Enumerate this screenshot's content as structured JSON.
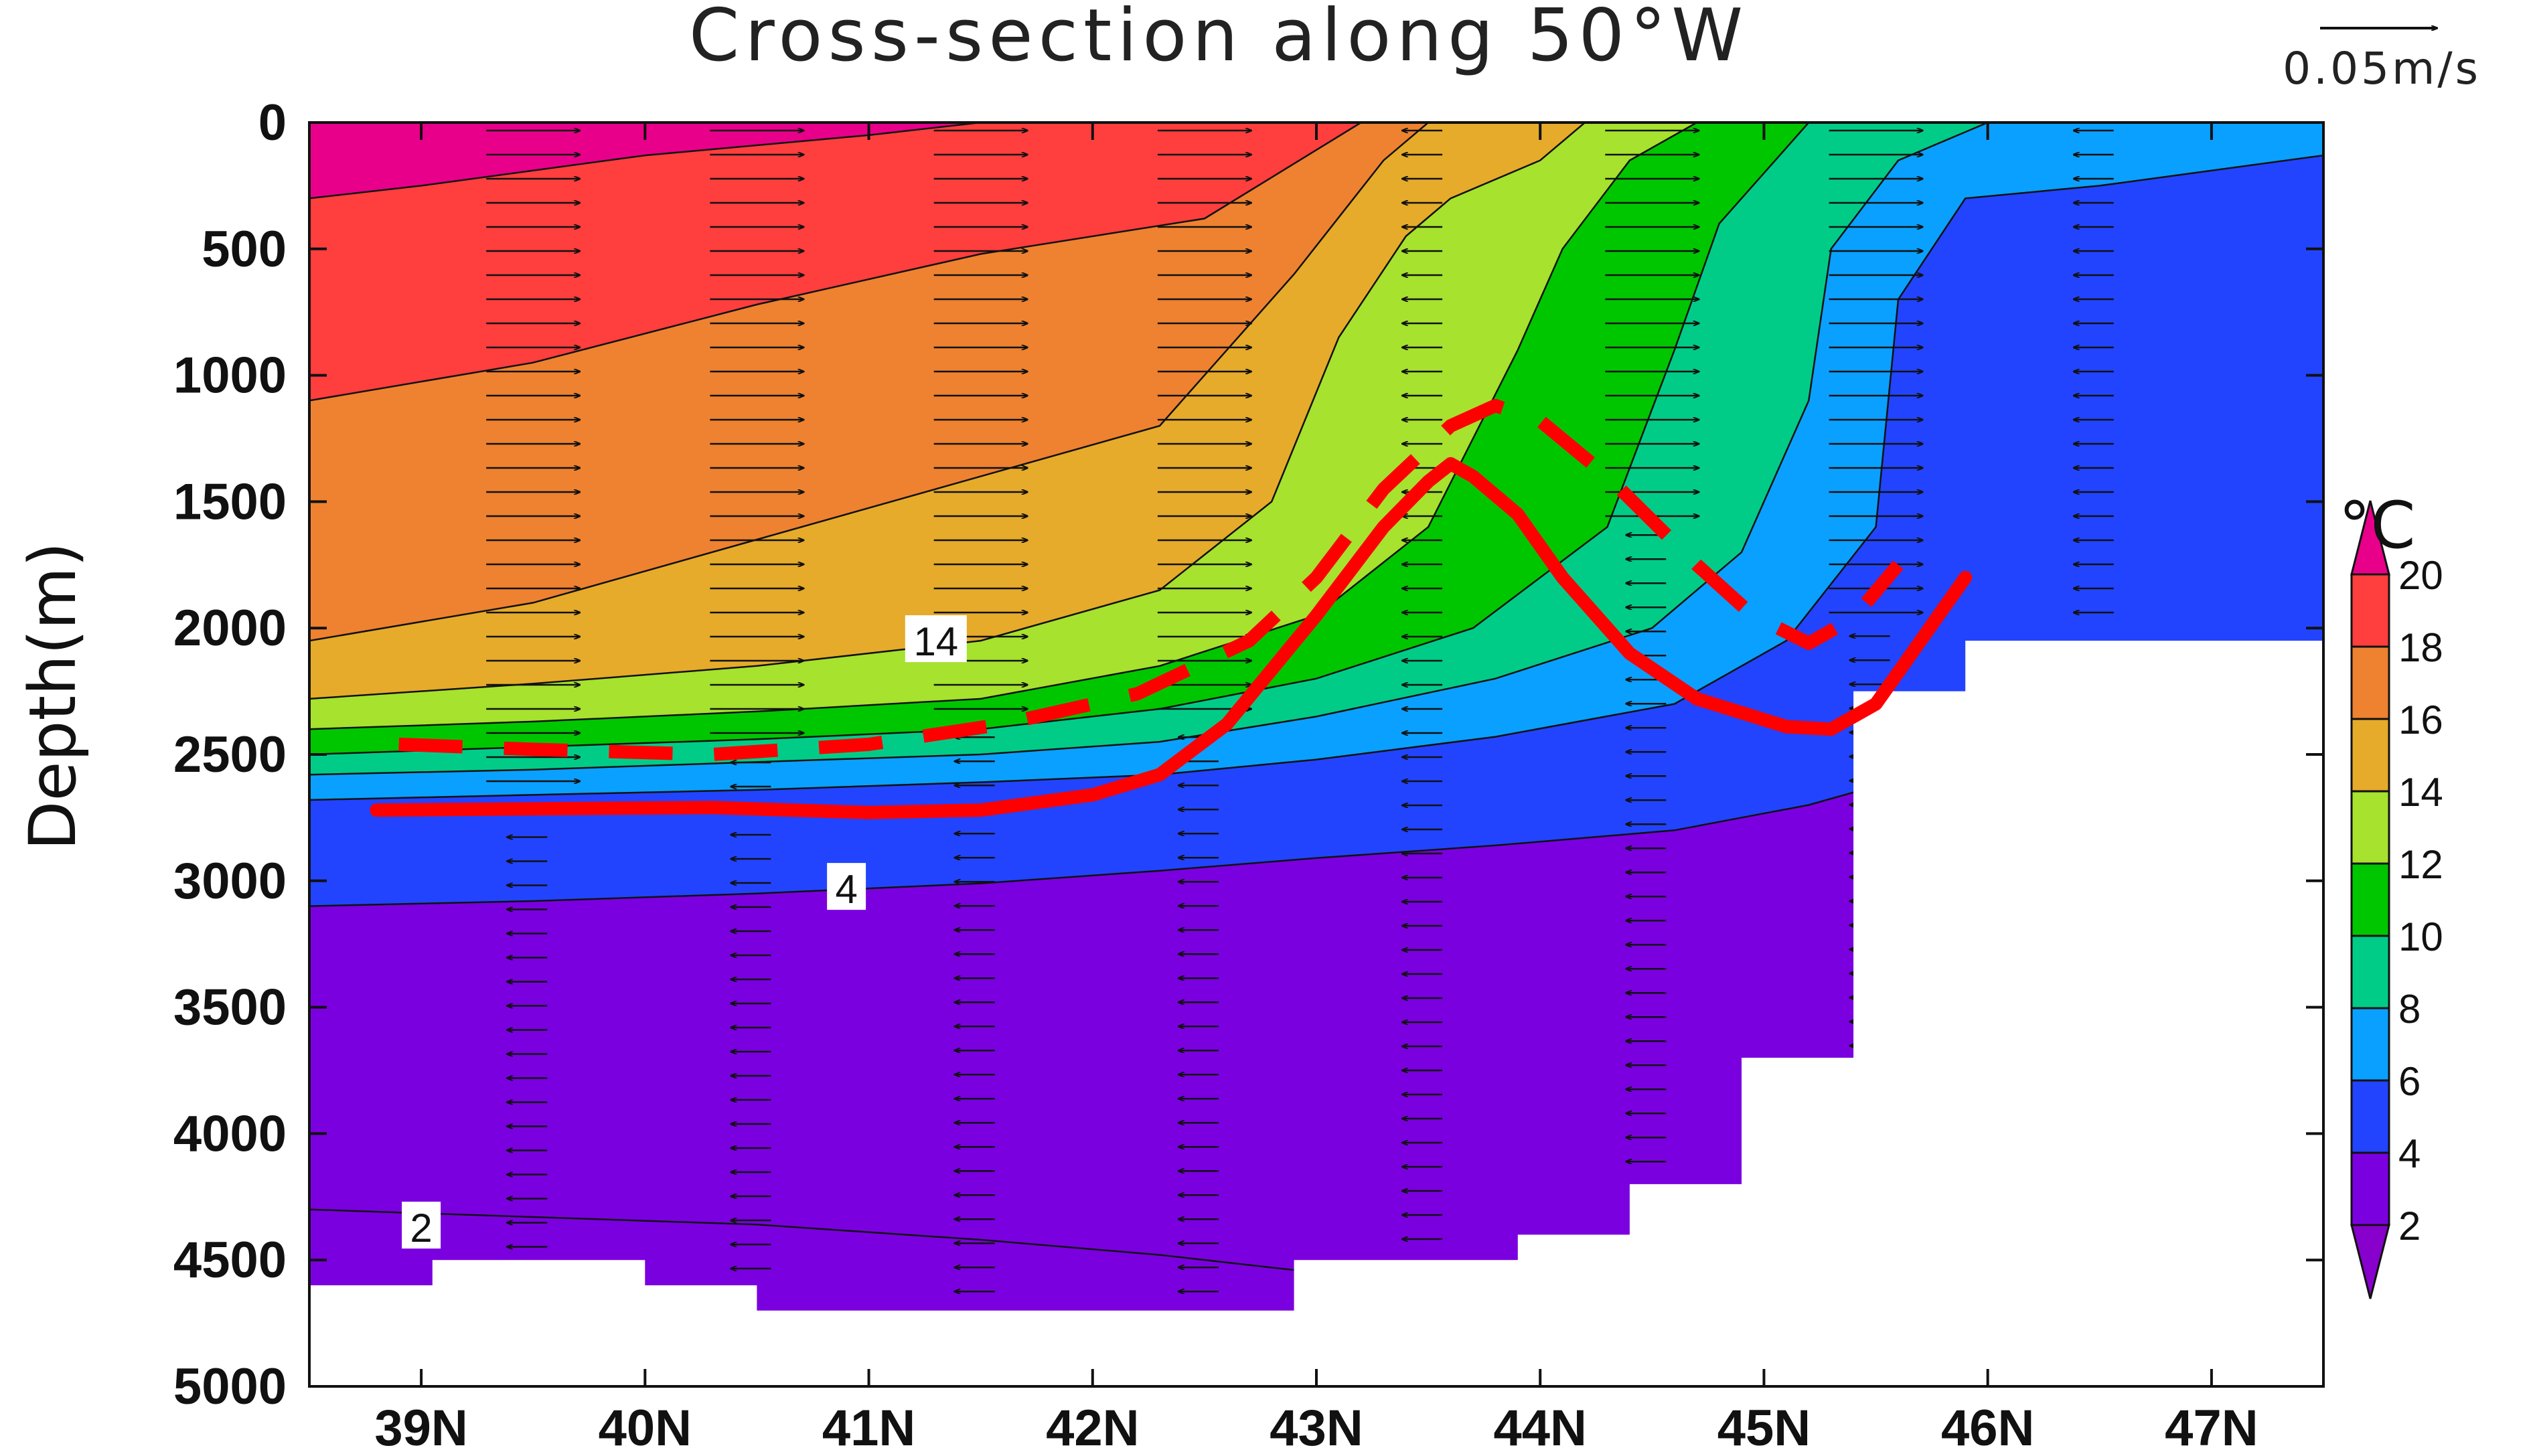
{
  "chart_data": {
    "type": "heatmap",
    "title": "Cross-section along 50°W",
    "xlabel": "",
    "ylabel": "Depth(m)",
    "x_ticks": [
      "39N",
      "40N",
      "41N",
      "42N",
      "43N",
      "44N",
      "45N",
      "46N",
      "47N"
    ],
    "x_tick_values": [
      39,
      40,
      41,
      42,
      43,
      44,
      45,
      46,
      47
    ],
    "xlim": [
      38.5,
      47.5
    ],
    "y_ticks": [
      "0",
      "500",
      "1000",
      "1500",
      "2000",
      "2500",
      "3000",
      "3500",
      "4000",
      "4500",
      "5000"
    ],
    "y_tick_values": [
      0,
      500,
      1000,
      1500,
      2000,
      2500,
      3000,
      3500,
      4000,
      4500,
      5000
    ],
    "ylim": [
      0,
      5000
    ],
    "y_inverted": true,
    "colorbar": {
      "unit": "°C",
      "levels": [
        2,
        4,
        6,
        8,
        10,
        12,
        14,
        16,
        18,
        20
      ],
      "labels": [
        "2",
        "4",
        "6",
        "8",
        "10",
        "12",
        "14",
        "16",
        "18",
        "20"
      ],
      "colors": [
        "#8800cc",
        "#7a00e0",
        "#2244ff",
        "#0aa0ff",
        "#00cc88",
        "#00c600",
        "#a6e22e",
        "#e6ab2a",
        "#ee8230",
        "#ff3e3e",
        "#e8008a"
      ]
    },
    "temperature_bands": [
      {
        "min": 18,
        "max": 20,
        "color": "#ff3e3e"
      },
      {
        "min": 16,
        "max": 18,
        "color": "#ee8230"
      },
      {
        "min": 14,
        "max": 16,
        "color": "#e6ab2a"
      },
      {
        "min": 12,
        "max": 14,
        "color": "#a6e22e"
      },
      {
        "min": 10,
        "max": 12,
        "color": "#00c600"
      },
      {
        "min": 8,
        "max": 10,
        "color": "#00cc88"
      },
      {
        "min": 6,
        "max": 8,
        "color": "#0aa0ff"
      },
      {
        "min": 4,
        "max": 6,
        "color": "#2244ff"
      },
      {
        "min": 2,
        "max": 4,
        "color": "#7a00e0"
      }
    ],
    "isotherm_depths_m": [
      {
        "t": 20,
        "points": [
          [
            38.5,
            300
          ],
          [
            39.0,
            250
          ],
          [
            40.0,
            130
          ],
          [
            41.0,
            50
          ],
          [
            41.5,
            0
          ]
        ]
      },
      {
        "t": 18,
        "points": [
          [
            38.5,
            1100
          ],
          [
            39.5,
            950
          ],
          [
            40.5,
            720
          ],
          [
            41.5,
            520
          ],
          [
            42.5,
            380
          ],
          [
            43.2,
            0
          ]
        ]
      },
      {
        "t": 16,
        "points": [
          [
            38.5,
            2050
          ],
          [
            39.5,
            1900
          ],
          [
            40.5,
            1650
          ],
          [
            41.5,
            1400
          ],
          [
            42.3,
            1200
          ],
          [
            42.9,
            600
          ],
          [
            43.3,
            150
          ],
          [
            43.5,
            0
          ]
        ]
      },
      {
        "t": 14,
        "points": [
          [
            38.5,
            2280
          ],
          [
            39.5,
            2220
          ],
          [
            40.5,
            2150
          ],
          [
            41.5,
            2050
          ],
          [
            42.3,
            1850
          ],
          [
            42.8,
            1500
          ],
          [
            43.1,
            850
          ],
          [
            43.4,
            450
          ],
          [
            43.6,
            300
          ],
          [
            44.0,
            150
          ],
          [
            44.2,
            0
          ]
        ]
      },
      {
        "t": 12,
        "points": [
          [
            38.5,
            2400
          ],
          [
            39.5,
            2370
          ],
          [
            40.5,
            2330
          ],
          [
            41.5,
            2280
          ],
          [
            42.3,
            2150
          ],
          [
            43.0,
            1950
          ],
          [
            43.5,
            1600
          ],
          [
            43.9,
            900
          ],
          [
            44.1,
            500
          ],
          [
            44.4,
            150
          ],
          [
            44.7,
            0
          ]
        ]
      },
      {
        "t": 10,
        "points": [
          [
            38.5,
            2500
          ],
          [
            39.5,
            2470
          ],
          [
            40.5,
            2440
          ],
          [
            41.5,
            2400
          ],
          [
            42.3,
            2320
          ],
          [
            43.0,
            2200
          ],
          [
            43.7,
            2000
          ],
          [
            44.3,
            1600
          ],
          [
            44.6,
            900
          ],
          [
            44.8,
            400
          ],
          [
            45.1,
            100
          ],
          [
            45.2,
            0
          ]
        ]
      },
      {
        "t": 8,
        "points": [
          [
            38.5,
            2580
          ],
          [
            39.5,
            2560
          ],
          [
            40.5,
            2530
          ],
          [
            41.5,
            2500
          ],
          [
            42.3,
            2450
          ],
          [
            43.0,
            2350
          ],
          [
            43.8,
            2200
          ],
          [
            44.5,
            2000
          ],
          [
            44.9,
            1700
          ],
          [
            45.2,
            1100
          ],
          [
            45.3,
            500
          ],
          [
            45.6,
            150
          ],
          [
            46.0,
            0
          ]
        ]
      },
      {
        "t": 6,
        "points": [
          [
            38.5,
            2680
          ],
          [
            39.5,
            2660
          ],
          [
            40.5,
            2640
          ],
          [
            41.5,
            2610
          ],
          [
            42.3,
            2580
          ],
          [
            43.0,
            2520
          ],
          [
            43.8,
            2430
          ],
          [
            44.6,
            2300
          ],
          [
            45.1,
            2050
          ],
          [
            45.5,
            1600
          ],
          [
            45.6,
            700
          ],
          [
            45.9,
            300
          ],
          [
            46.5,
            250
          ],
          [
            47.5,
            130
          ]
        ]
      },
      {
        "t": 4,
        "points": [
          [
            38.5,
            3100
          ],
          [
            39.5,
            3080
          ],
          [
            40.5,
            3050
          ],
          [
            41.5,
            3010
          ],
          [
            42.3,
            2960
          ],
          [
            43.0,
            2910
          ],
          [
            43.8,
            2860
          ],
          [
            44.6,
            2800
          ],
          [
            45.2,
            2700
          ],
          [
            45.8,
            2550
          ],
          [
            45.9,
            2450
          ]
        ]
      },
      {
        "t": 2,
        "points": [
          [
            38.5,
            4300
          ],
          [
            39.5,
            4330
          ],
          [
            40.5,
            4360
          ],
          [
            41.5,
            4420
          ],
          [
            42.3,
            4480
          ],
          [
            42.9,
            4540
          ]
        ]
      }
    ],
    "isotherm_labels": [
      {
        "text": "14",
        "x": 41.3,
        "depth": 2050
      },
      {
        "text": "4",
        "x": 40.9,
        "depth": 3030
      },
      {
        "text": "2",
        "x": 39.0,
        "depth": 4370
      }
    ],
    "seafloor_m": [
      [
        38.5,
        4600
      ],
      [
        39.05,
        4600
      ],
      [
        39.05,
        4500
      ],
      [
        40.0,
        4500
      ],
      [
        40.0,
        4600
      ],
      [
        40.5,
        4600
      ],
      [
        40.5,
        4700
      ],
      [
        42.9,
        4700
      ],
      [
        42.9,
        4500
      ],
      [
        43.9,
        4500
      ],
      [
        43.9,
        4400
      ],
      [
        44.4,
        4400
      ],
      [
        44.4,
        4200
      ],
      [
        44.9,
        4200
      ],
      [
        44.9,
        3700
      ],
      [
        45.4,
        3700
      ],
      [
        45.4,
        2250
      ],
      [
        45.9,
        2250
      ],
      [
        45.9,
        2050
      ],
      [
        46.4,
        2050
      ],
      [
        47.5,
        2050
      ]
    ],
    "velocity_reference": {
      "label": "0.05m/s"
    },
    "velocity_columns": [
      {
        "x": 39.5,
        "dir": [
          [
            0,
            2700,
            1
          ],
          [
            2700,
            4500,
            -1
          ]
        ]
      },
      {
        "x": 40.5,
        "dir": [
          [
            0,
            2500,
            1
          ],
          [
            2500,
            4600,
            -1
          ]
        ]
      },
      {
        "x": 41.5,
        "dir": [
          [
            0,
            2400,
            1
          ],
          [
            2400,
            4700,
            -1
          ]
        ]
      },
      {
        "x": 42.5,
        "dir": [
          [
            0,
            2400,
            1
          ],
          [
            2400,
            4700,
            -1
          ]
        ]
      },
      {
        "x": 43.5,
        "dir": [
          [
            0,
            4500,
            -1
          ]
        ]
      },
      {
        "x": 44.5,
        "dir": [
          [
            0,
            1600,
            1
          ],
          [
            1600,
            4200,
            -1
          ]
        ]
      },
      {
        "x": 45.5,
        "dir": [
          [
            0,
            2000,
            1
          ],
          [
            2000,
            4200,
            -1
          ]
        ]
      },
      {
        "x": 46.5,
        "dir": [
          [
            0,
            2000,
            -1
          ]
        ]
      }
    ],
    "series": [
      {
        "style": "solid",
        "color": "#ff0000",
        "points": [
          [
            38.8,
            2720
          ],
          [
            39.5,
            2715
          ],
          [
            40.3,
            2710
          ],
          [
            41.0,
            2730
          ],
          [
            41.5,
            2720
          ],
          [
            42.0,
            2660
          ],
          [
            42.3,
            2580
          ],
          [
            42.6,
            2380
          ],
          [
            43.0,
            1950
          ],
          [
            43.3,
            1600
          ],
          [
            43.5,
            1420
          ],
          [
            43.6,
            1350
          ],
          [
            43.7,
            1400
          ],
          [
            43.9,
            1550
          ],
          [
            44.1,
            1800
          ],
          [
            44.4,
            2100
          ],
          [
            44.7,
            2280
          ],
          [
            45.1,
            2390
          ],
          [
            45.3,
            2400
          ],
          [
            45.5,
            2300
          ],
          [
            45.7,
            2050
          ],
          [
            45.9,
            1800
          ]
        ]
      },
      {
        "style": "dashed",
        "color": "#ff0000",
        "points": [
          [
            38.9,
            2460
          ],
          [
            39.5,
            2480
          ],
          [
            40.3,
            2500
          ],
          [
            41.0,
            2460
          ],
          [
            41.6,
            2380
          ],
          [
            42.2,
            2260
          ],
          [
            42.7,
            2050
          ],
          [
            43.0,
            1800
          ],
          [
            43.3,
            1450
          ],
          [
            43.6,
            1200
          ],
          [
            43.8,
            1120
          ],
          [
            44.0,
            1180
          ],
          [
            44.3,
            1400
          ],
          [
            44.7,
            1750
          ],
          [
            44.95,
            1950
          ],
          [
            45.2,
            2060
          ],
          [
            45.4,
            1960
          ],
          [
            45.6,
            1750
          ]
        ]
      }
    ]
  }
}
